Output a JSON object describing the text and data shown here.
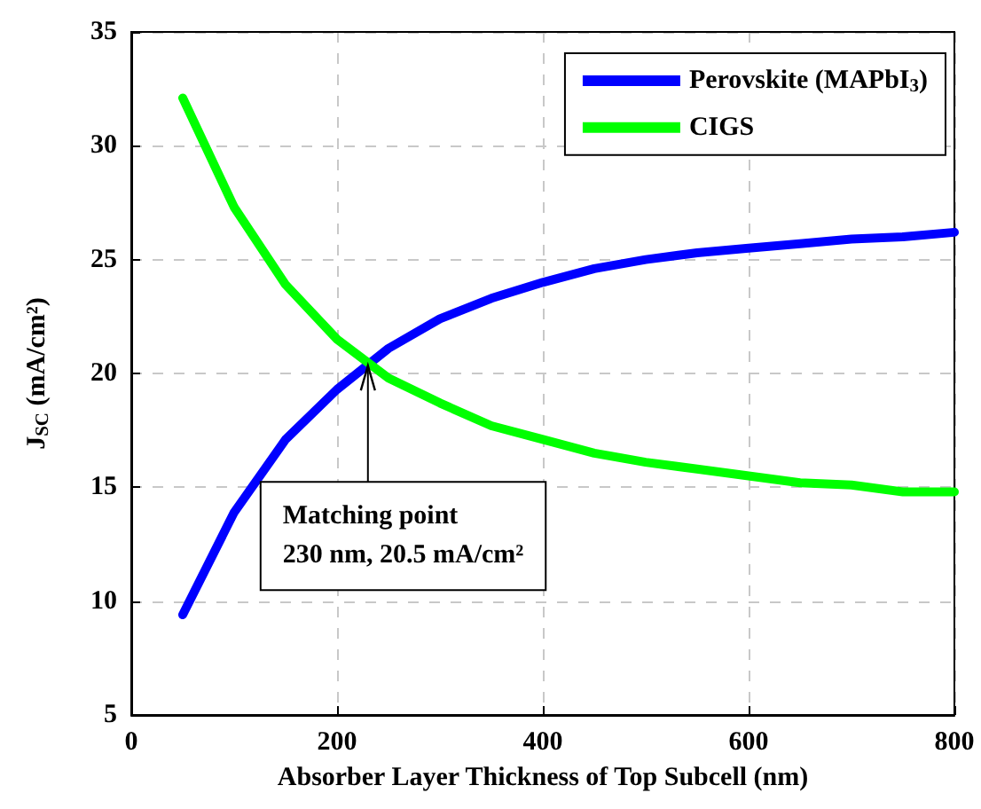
{
  "chart_data": {
    "type": "line",
    "xlabel": "Absorber Layer Thickness of Top Subcell (nm)",
    "ylabel": "J$_{SC}$ (mA/cm²)",
    "x": [
      50,
      100,
      150,
      200,
      250,
      300,
      350,
      400,
      450,
      500,
      550,
      600,
      650,
      700,
      750,
      800
    ],
    "series": [
      {
        "name": "Perovskite (MAPbI$_{3}$)",
        "color": "#0000ff",
        "values": [
          9.4,
          13.9,
          17.1,
          19.3,
          21.1,
          22.4,
          23.3,
          24.0,
          24.6,
          25.0,
          25.3,
          25.5,
          25.7,
          25.9,
          26.0,
          26.2
        ]
      },
      {
        "name": "CIGS",
        "color": "#00ff00",
        "values": [
          32.1,
          27.3,
          23.9,
          21.5,
          19.8,
          18.7,
          17.7,
          17.1,
          16.5,
          16.1,
          15.8,
          15.5,
          15.2,
          15.1,
          14.8,
          14.8
        ]
      }
    ],
    "xlim": [
      0,
      800
    ],
    "xticks": [
      0,
      200,
      400,
      600,
      800
    ],
    "ylim": [
      5,
      35
    ],
    "yticks": [
      5,
      10,
      15,
      20,
      25,
      30,
      35
    ],
    "annotations": [
      {
        "text": "Matching point\n230 nm, 20.5 mA/cm²",
        "x": 230,
        "y": 20.5
      }
    ],
    "grid": true,
    "legend": "top right",
    "marker": "none",
    "line_style": "solid"
  }
}
